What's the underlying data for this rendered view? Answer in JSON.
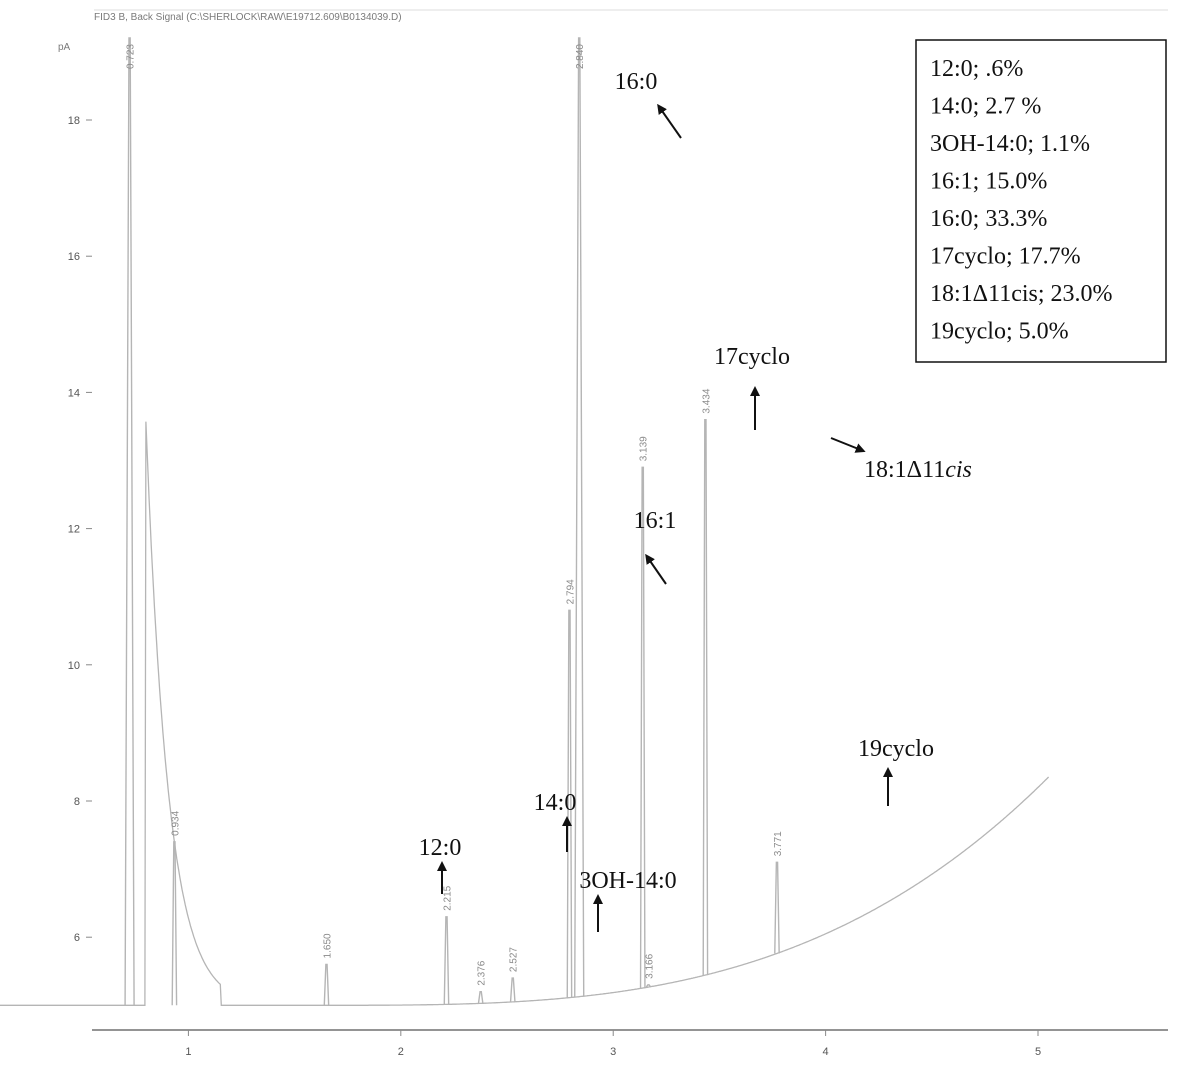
{
  "chart_data": {
    "type": "line",
    "header": "FID3 B, Back Signal (C:\\SHERLOCK\\RAW\\E19712.609\\B0134039.D)",
    "ylabel": "pA",
    "xlabel": "",
    "xlim": [
      0,
      5.05
    ],
    "ylim": [
      4.8,
      19.5
    ],
    "xticks": [
      "1",
      "2",
      "3",
      "4",
      "5"
    ],
    "yticks": [
      "6",
      "8",
      "10",
      "12",
      "14",
      "16",
      "18"
    ],
    "grid": false,
    "colors": {
      "signal": "#b5b5b5",
      "axis": "#555555",
      "text": "#111111"
    },
    "peaks": [
      {
        "rt": 0.723,
        "label": "0.723",
        "height": 19.5
      },
      {
        "rt": 0.934,
        "label": "0.934",
        "height": 7.4
      },
      {
        "rt": 1.65,
        "label": "1.650",
        "height": 5.6
      },
      {
        "rt": 2.215,
        "label": "2.215",
        "height": 6.3
      },
      {
        "rt": 2.376,
        "label": "2.376",
        "height": 5.2
      },
      {
        "rt": 2.527,
        "label": "2.527",
        "height": 5.4
      },
      {
        "rt": 2.794,
        "label": "2.794",
        "height": 10.8
      },
      {
        "rt": 2.84,
        "label": "2.840",
        "height": 19.5
      },
      {
        "rt": 3.139,
        "label": "3.139",
        "height": 12.9
      },
      {
        "rt": 3.166,
        "label": "3.166",
        "height": 5.3
      },
      {
        "rt": 3.434,
        "label": "3.434",
        "height": 13.6
      },
      {
        "rt": 3.771,
        "label": "3.771",
        "height": 7.1
      }
    ],
    "annotations": [
      {
        "text": "12:0",
        "rt": 1.65
      },
      {
        "text": "14:0",
        "rt": 2.215
      },
      {
        "text": "3OH-14:0",
        "rt": 2.376
      },
      {
        "text": "16:1",
        "rt": 2.794
      },
      {
        "text": "16:0",
        "rt": 2.84
      },
      {
        "text": "17cyclo",
        "rt": 3.139
      },
      {
        "text_prefix": "18:1Δ11",
        "text_italic": "cis",
        "rt": 3.434
      },
      {
        "text": "19cyclo",
        "rt": 3.771
      }
    ],
    "legend_position": "top-right",
    "legend": [
      "12:0; .6%",
      "14:0; 2.7 %",
      "3OH-14:0; 1.1%",
      "16:1; 15.0%",
      "16:0; 33.3%",
      "17cyclo; 17.7%",
      "18:1Δ11cis; 23.0%",
      "19cyclo; 5.0%"
    ]
  }
}
